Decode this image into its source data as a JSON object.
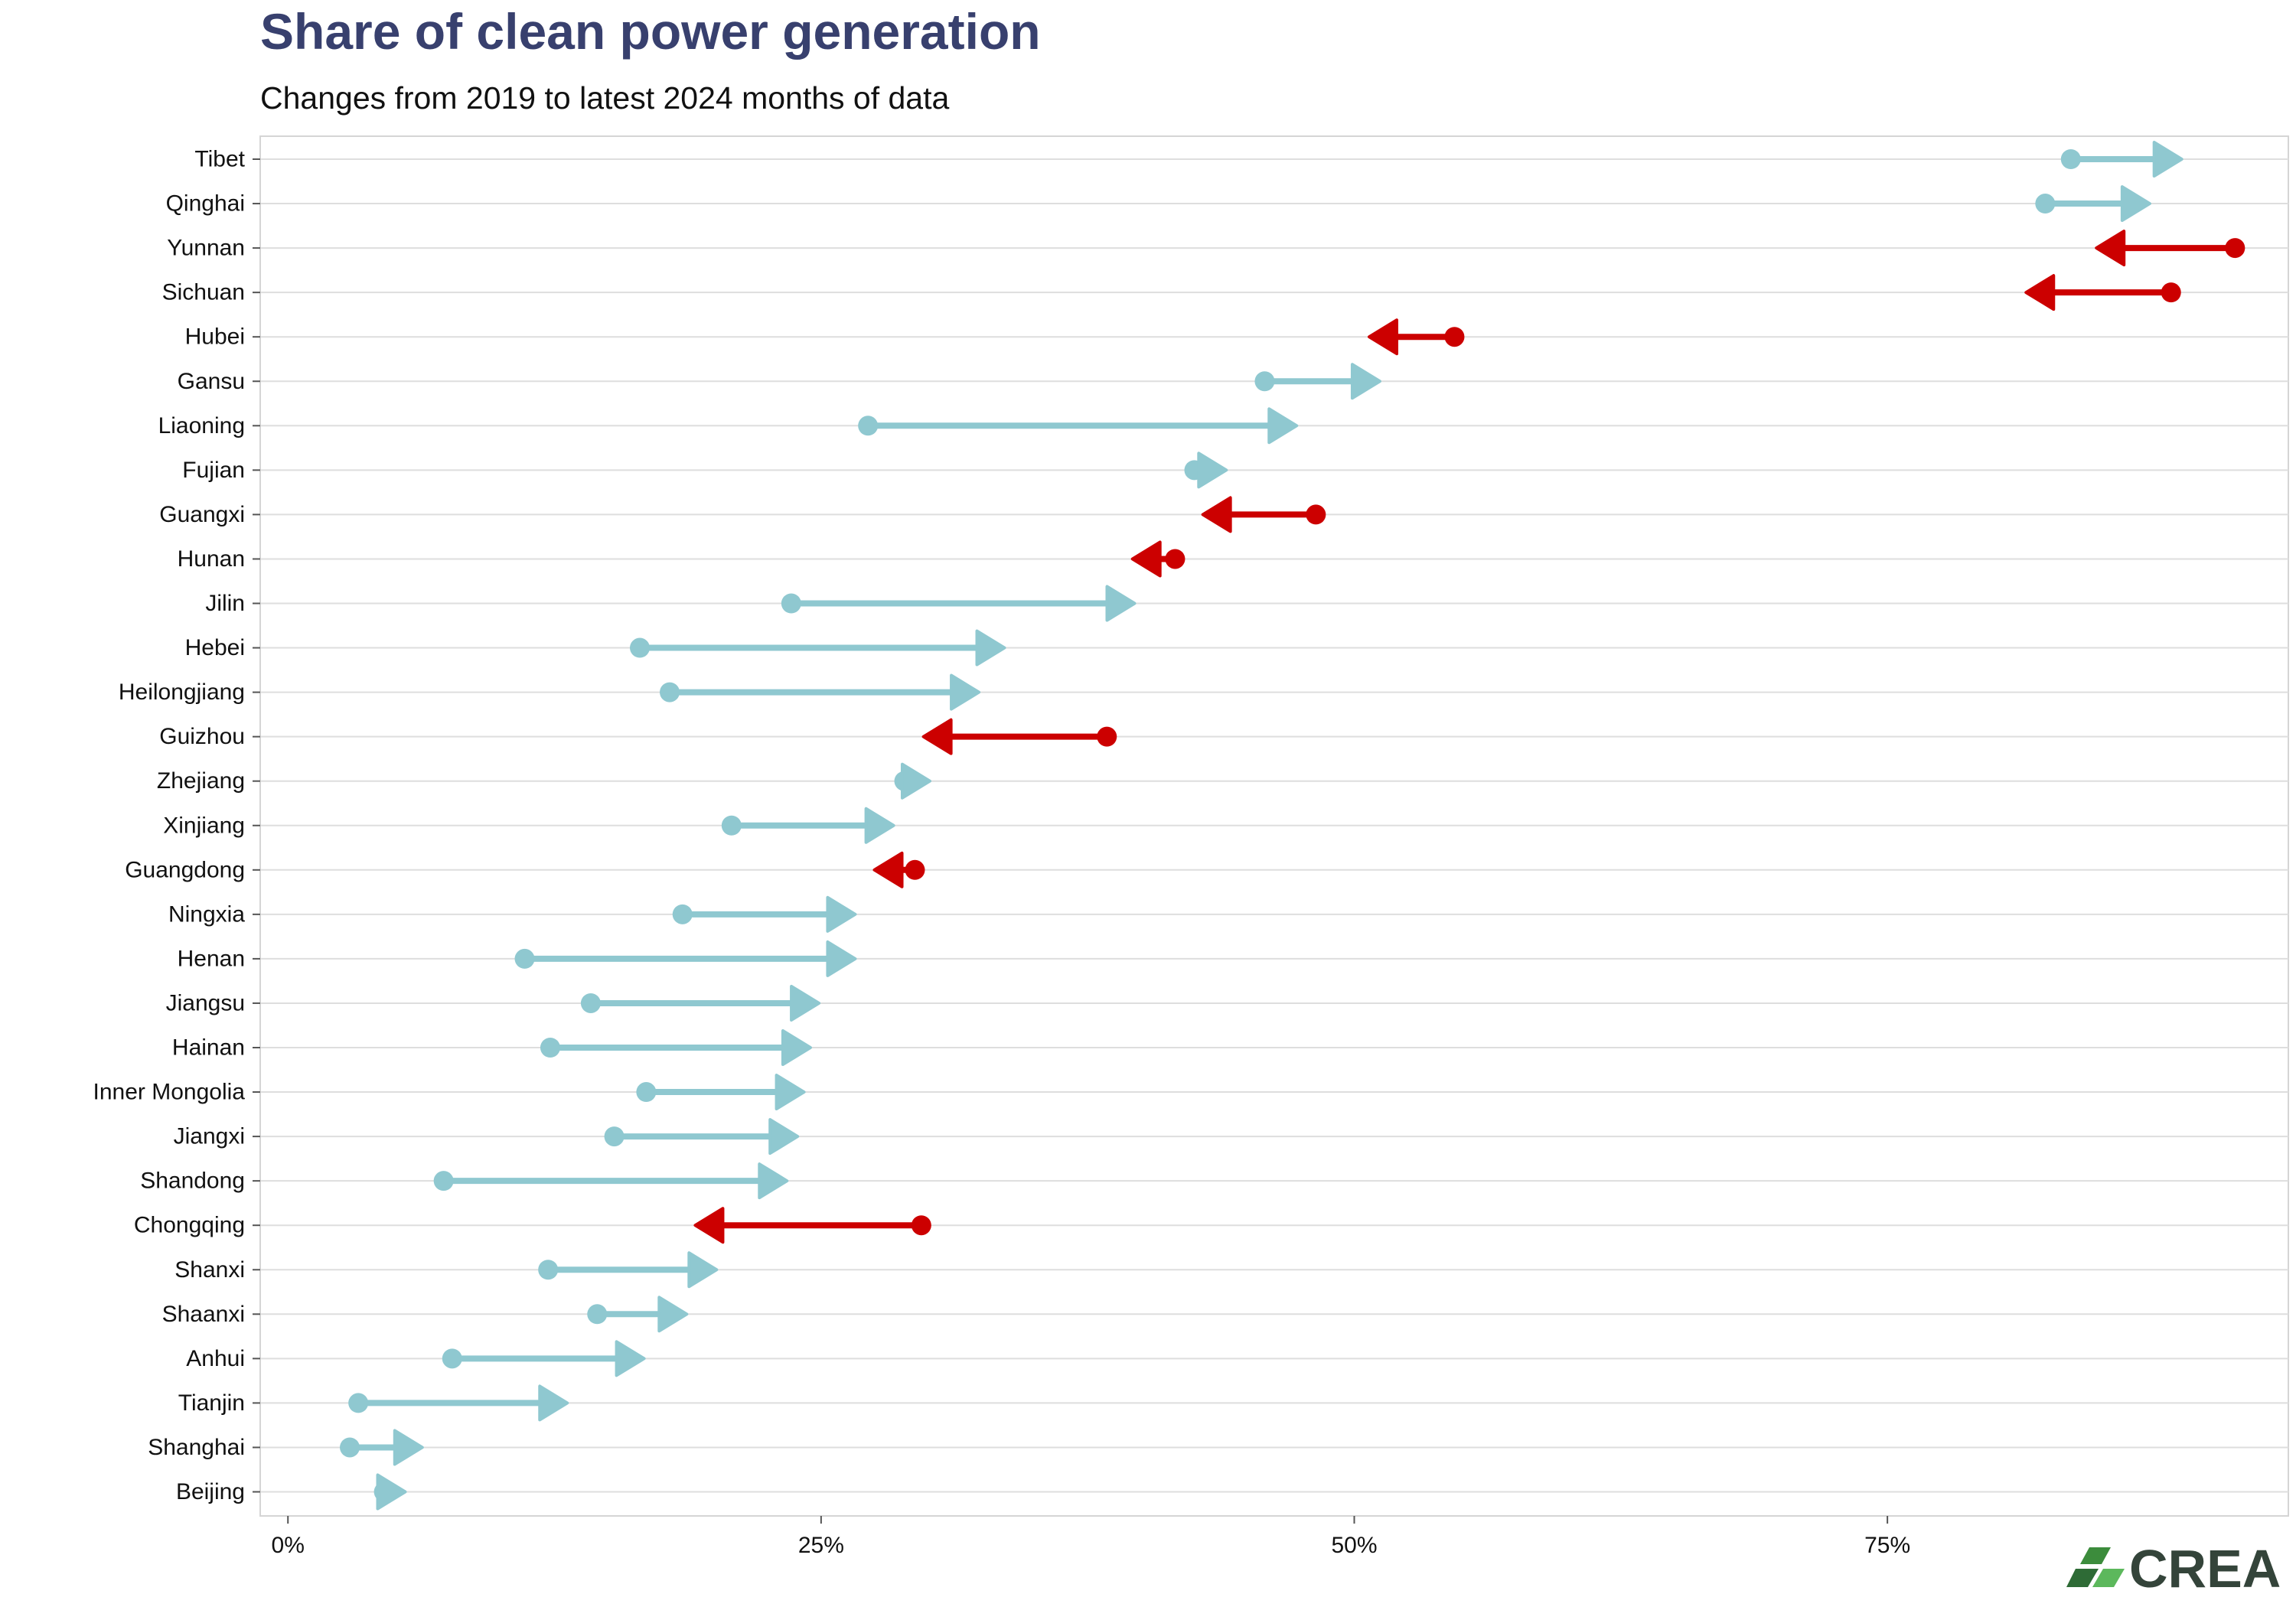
{
  "chart_data": {
    "type": "arrow",
    "title": "Share of clean power generation",
    "subtitle": "Changes from 2019 to latest 2024 months of data",
    "xlabel": "",
    "ylabel": "",
    "x_ticks": [
      "0%",
      "25%",
      "50%",
      "75%"
    ],
    "xlim": [
      -1.3,
      93.8
    ],
    "grid": true,
    "colors": {
      "increase": "#8fc8d0",
      "decrease": "#cc0000",
      "title": "#38406e"
    },
    "categories": [
      "Tibet",
      "Qinghai",
      "Yunnan",
      "Sichuan",
      "Hubei",
      "Gansu",
      "Liaoning",
      "Fujian",
      "Guangxi",
      "Hunan",
      "Jilin",
      "Hebei",
      "Heilongjiang",
      "Guizhou",
      "Zhejiang",
      "Xinjiang",
      "Guangdong",
      "Ningxia",
      "Henan",
      "Jiangsu",
      "Hainan",
      "Inner Mongolia",
      "Jiangxi",
      "Shandong",
      "Chongqing",
      "Shanxi",
      "Shaanxi",
      "Anhui",
      "Tianjin",
      "Shanghai",
      "Beijing"
    ],
    "series": [
      {
        "name": "2019",
        "values": [
          83.6,
          82.4,
          91.3,
          88.3,
          54.7,
          45.8,
          27.2,
          42.5,
          48.2,
          41.6,
          23.6,
          16.5,
          17.9,
          38.4,
          28.9,
          20.8,
          29.4,
          18.5,
          11.1,
          14.2,
          12.3,
          16.8,
          15.3,
          7.3,
          29.7,
          12.2,
          14.5,
          7.7,
          3.3,
          2.9,
          4.5
        ]
      },
      {
        "name": "2024",
        "values": [
          88.8,
          87.3,
          84.8,
          81.5,
          50.7,
          51.2,
          47.3,
          44.0,
          42.9,
          39.6,
          39.7,
          33.6,
          32.4,
          29.8,
          30.1,
          28.4,
          27.5,
          26.6,
          26.6,
          24.9,
          24.5,
          24.2,
          23.9,
          23.4,
          19.1,
          20.1,
          18.7,
          16.7,
          13.1,
          6.3,
          5.5
        ]
      }
    ]
  },
  "logo": {
    "text": "CREA",
    "colors": [
      "#3c8c3c",
      "#5cb85c",
      "#2e6b36"
    ]
  }
}
